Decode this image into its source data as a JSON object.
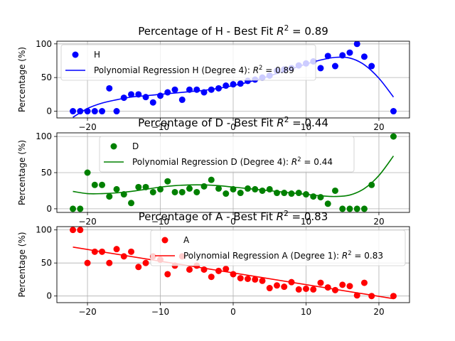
{
  "chart_data": [
    {
      "type": "scatter",
      "title": "Percentage of H - Best Fit $R^2$ = 0.89",
      "title_main": "Percentage of H - Best Fit ",
      "title_r2": "R",
      "title_sup": "2",
      "title_tail": " = 0.89",
      "ylabel": "Percentage (%)",
      "color": "#0000ff",
      "xlim": [
        -24.2,
        24.2
      ],
      "ylim": [
        -10,
        104
      ],
      "xticks": [
        -20,
        -10,
        0,
        10,
        20
      ],
      "yticks": [
        0,
        50,
        100
      ],
      "grid": true,
      "legend_position": "upper-left",
      "series": [
        {
          "name": "H",
          "kind": "scatter",
          "x": [
            -22,
            -21,
            -20,
            -19,
            -18,
            -17,
            -16,
            -15,
            -14,
            -13,
            -12,
            -11,
            -10,
            -9,
            -8,
            -7,
            -6,
            -5,
            -4,
            -3,
            -2,
            -1,
            0,
            1,
            2,
            3,
            4,
            5,
            6,
            7,
            8,
            9,
            10,
            11,
            12,
            13,
            14,
            15,
            16,
            17,
            18,
            19,
            22
          ],
          "y": [
            0,
            0,
            0,
            0,
            0,
            34,
            0,
            20,
            25,
            25,
            21,
            13,
            23,
            28,
            32,
            17,
            32,
            32,
            28,
            32,
            34,
            38,
            40,
            41,
            45,
            47,
            50,
            53,
            60,
            62,
            64,
            68,
            71,
            74,
            64,
            82,
            67,
            83,
            87,
            100,
            81,
            67,
            0
          ]
        },
        {
          "name": "Polynomial Regression H (Degree 4): $R^2 = 0.89$",
          "kind": "line",
          "label_main": "Polynomial Regression H (Degree 4): ",
          "label_r2": "R",
          "label_sup": "2",
          "label_tail": " = 0.89",
          "x": [
            -22,
            -20,
            -18,
            -16,
            -14,
            -12,
            -10,
            -8,
            -6,
            -4,
            -2,
            0,
            2,
            4,
            6,
            8,
            10,
            12,
            14,
            16,
            18,
            20,
            22
          ],
          "y": [
            -9,
            4,
            12,
            17,
            21,
            23,
            25,
            27,
            29,
            31,
            34,
            38,
            43,
            49,
            56,
            63,
            70,
            76,
            80,
            79,
            69,
            49,
            21
          ]
        }
      ]
    },
    {
      "type": "scatter",
      "title": "Percentage of D - Best Fit $R^2$ = 0.44",
      "title_main": "Percentage of D - Best Fit ",
      "title_r2": "R",
      "title_sup": "2",
      "title_tail": " = 0.44",
      "ylabel": "Percentage (%)",
      "color": "#008000",
      "xlim": [
        -24.2,
        24.2
      ],
      "ylim": [
        -5,
        105
      ],
      "xticks": [
        -20,
        -10,
        0,
        10,
        20
      ],
      "yticks": [
        0,
        50,
        100
      ],
      "grid": true,
      "legend_position": "upper-center",
      "series": [
        {
          "name": "D",
          "kind": "scatter",
          "x": [
            -22,
            -21,
            -20,
            -19,
            -18,
            -17,
            -16,
            -15,
            -14,
            -13,
            -12,
            -11,
            -10,
            -9,
            -8,
            -7,
            -6,
            -5,
            -4,
            -3,
            -2,
            -1,
            0,
            1,
            2,
            3,
            4,
            5,
            6,
            7,
            8,
            9,
            10,
            11,
            12,
            13,
            14,
            15,
            16,
            17,
            18,
            19,
            22
          ],
          "y": [
            0,
            0,
            50,
            33,
            33,
            17,
            27,
            20,
            8,
            30,
            30,
            23,
            27,
            38,
            23,
            23,
            28,
            23,
            31,
            40,
            28,
            21,
            27,
            22,
            28,
            27,
            25,
            27,
            22,
            22,
            21,
            22,
            20,
            17,
            16,
            7,
            25,
            0,
            0,
            0,
            0,
            33,
            100
          ]
        },
        {
          "name": "Polynomial Regression D (Degree 4): $R^2 = 0.44$",
          "kind": "line",
          "label_main": "Polynomial Regression D (Degree 4): ",
          "label_r2": "R",
          "label_sup": "2",
          "label_tail": " = 0.44",
          "x": [
            -22,
            -20,
            -18,
            -16,
            -14,
            -12,
            -10,
            -8,
            -6,
            -4,
            -2,
            0,
            2,
            4,
            6,
            8,
            10,
            12,
            14,
            16,
            18,
            20,
            22
          ],
          "y": [
            24,
            21,
            21,
            22,
            24,
            27,
            30,
            32,
            33,
            33,
            32,
            30,
            28,
            26,
            24,
            22,
            20,
            18,
            17,
            19,
            28,
            46,
            73
          ]
        }
      ]
    },
    {
      "type": "scatter",
      "title": "Percentage of A - Best Fit $R^2$ = 0.83",
      "title_main": "Percentage of A - Best Fit ",
      "title_r2": "R",
      "title_sup": "2",
      "title_tail": " = 0.83",
      "ylabel": "Percentage (%)",
      "color": "#ff0000",
      "xlim": [
        -24.2,
        24.2
      ],
      "ylim": [
        -10,
        105
      ],
      "xticks": [
        -20,
        -10,
        0,
        10,
        20
      ],
      "yticks": [
        0,
        50,
        100
      ],
      "grid": true,
      "legend_position": "upper-right",
      "series": [
        {
          "name": "A",
          "kind": "scatter",
          "x": [
            -22,
            -21,
            -20,
            -19,
            -18,
            -17,
            -16,
            -15,
            -14,
            -13,
            -12,
            -11,
            -10,
            -9,
            -8,
            -7,
            -6,
            -5,
            -4,
            -3,
            -2,
            -1,
            0,
            1,
            2,
            3,
            4,
            5,
            6,
            7,
            8,
            9,
            10,
            11,
            12,
            13,
            14,
            15,
            16,
            17,
            18,
            19,
            22
          ],
          "y": [
            100,
            100,
            50,
            67,
            67,
            50,
            71,
            60,
            67,
            44,
            50,
            60,
            55,
            33,
            46,
            60,
            40,
            46,
            40,
            29,
            38,
            41,
            33,
            27,
            26,
            25,
            23,
            12,
            16,
            14,
            21,
            10,
            11,
            10,
            20,
            13,
            9,
            17,
            15,
            1,
            20,
            0,
            0
          ]
        },
        {
          "name": "Polynomial Regression A (Degree 1): $R^2 = 0.83$",
          "kind": "line",
          "label_main": "Polynomial Regression A (Degree 1): ",
          "label_r2": "R",
          "label_sup": "2",
          "label_tail": " = 0.83",
          "x": [
            -22,
            22
          ],
          "y": [
            74,
            -4
          ]
        }
      ]
    }
  ]
}
